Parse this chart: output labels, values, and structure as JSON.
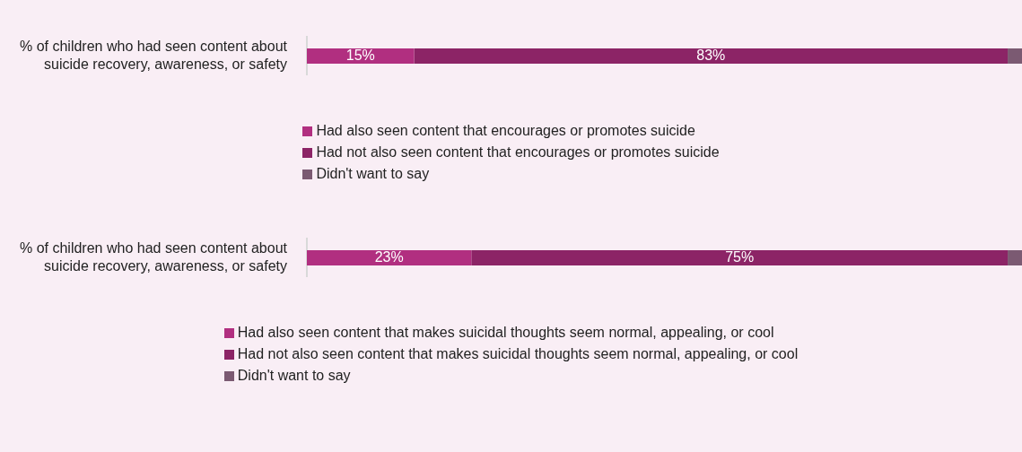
{
  "chart_data": [
    {
      "type": "bar",
      "orientation": "horizontal",
      "stacked": true,
      "categories": [
        "% of children who had seen content about suicide recovery, awareness, or safety"
      ],
      "xlim": [
        0,
        100
      ],
      "tick_labels": "y",
      "legend": "bottom",
      "series": [
        {
          "name": "Had also seen content that encourages or promotes suicide",
          "color": "#b12f80",
          "values": [
            15
          ],
          "value_labels": [
            "15%"
          ]
        },
        {
          "name": "Had not also seen content that encourages or promotes suicide",
          "color": "#8c2466",
          "values": [
            83
          ],
          "value_labels": [
            "83%"
          ]
        },
        {
          "name": "Didn't want to say",
          "color": "#7b5a72",
          "values": [
            2
          ],
          "value_labels": [
            null
          ]
        }
      ]
    },
    {
      "type": "bar",
      "orientation": "horizontal",
      "stacked": true,
      "categories": [
        "% of children who had seen content about suicide recovery, awareness, or safety"
      ],
      "xlim": [
        0,
        100
      ],
      "tick_labels": "y",
      "legend": "bottom",
      "series": [
        {
          "name": "Had also seen content that makes suicidal thoughts seem normal, appealing, or cool",
          "color": "#b12f80",
          "values": [
            23
          ],
          "value_labels": [
            "23%"
          ]
        },
        {
          "name": "Had not also seen content that makes suicidal thoughts seem normal, appealing, or cool",
          "color": "#8c2466",
          "values": [
            75
          ],
          "value_labels": [
            "75%"
          ]
        },
        {
          "name": "Didn't want to say",
          "color": "#7b5a72",
          "values": [
            2
          ],
          "value_labels": [
            null
          ]
        }
      ]
    }
  ]
}
